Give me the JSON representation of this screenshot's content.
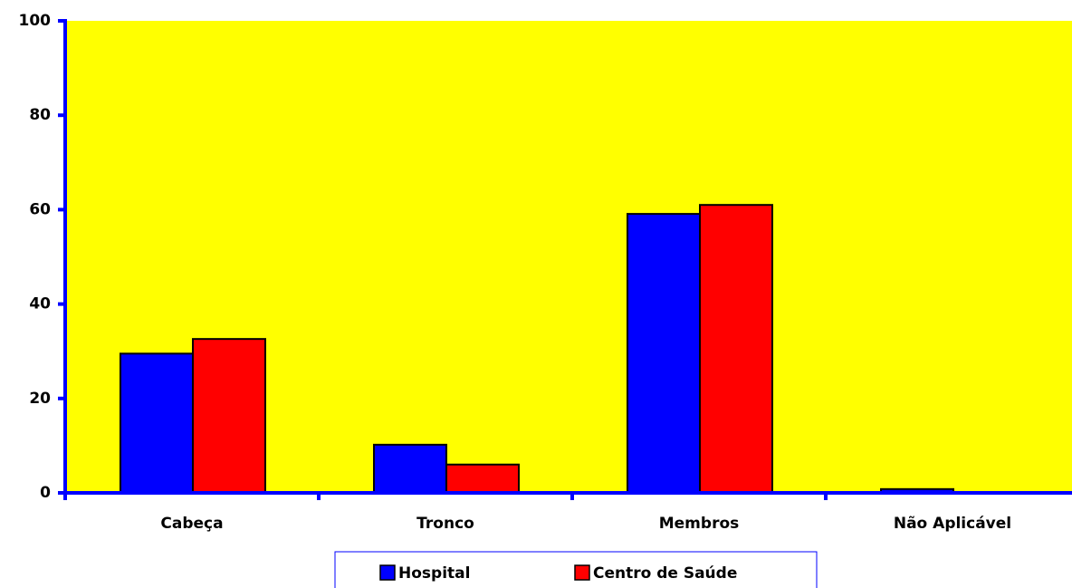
{
  "chart_data": {
    "type": "bar",
    "categories": [
      "Cabeça",
      "Tronco",
      "Membros",
      "Não Aplicável"
    ],
    "series": [
      {
        "name": "Hospital",
        "color": "#0000ff",
        "values": [
          29.5,
          10.2,
          59.1,
          0.8
        ]
      },
      {
        "name": "Centro de Saúde",
        "color": "#ff0000",
        "values": [
          32.6,
          6,
          61,
          0
        ]
      }
    ],
    "ylim": [
      0,
      100
    ],
    "yticks": [
      0,
      20,
      40,
      60,
      80,
      100
    ],
    "plot_background": "#ffff00",
    "axis_color": "#0000ff",
    "legend": "bottom"
  }
}
